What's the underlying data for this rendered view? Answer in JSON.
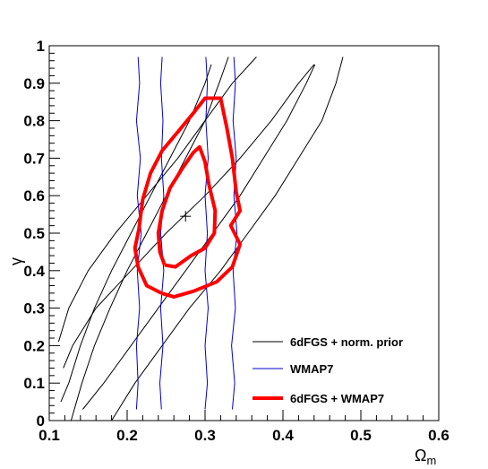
{
  "chart_data": {
    "type": "line",
    "xlabel": "Ω",
    "xlabel_sub": "m",
    "ylabel": "γ",
    "xlim": [
      0.1,
      0.6
    ],
    "ylim": [
      0,
      1
    ],
    "x_ticks": [
      "0.1",
      "0.2",
      "0.3",
      "0.4",
      "0.5",
      "0.6"
    ],
    "y_ticks": [
      "0",
      "0.1",
      "0.2",
      "0.3",
      "0.4",
      "0.5",
      "0.6",
      "0.7",
      "0.8",
      "0.9",
      "1"
    ],
    "grid": false,
    "legend_position": "bottom-right",
    "best_fit": {
      "x": 0.275,
      "y": 0.545,
      "marker": "+"
    },
    "series": [
      {
        "name": "6dFGS + norm. prior",
        "color": "#000000",
        "contours": [
          [
            [
              0.128,
              0.0
            ],
            [
              0.142,
              0.1
            ],
            [
              0.158,
              0.2
            ],
            [
              0.178,
              0.3
            ],
            [
              0.2,
              0.4
            ],
            [
              0.225,
              0.5
            ],
            [
              0.25,
              0.6
            ],
            [
              0.275,
              0.7
            ],
            [
              0.3,
              0.8
            ],
            [
              0.318,
              0.9
            ],
            [
              0.33,
              0.97
            ]
          ],
          [
            [
              0.115,
              0.05
            ],
            [
              0.125,
              0.1
            ],
            [
              0.14,
              0.2
            ],
            [
              0.158,
              0.3
            ],
            [
              0.18,
              0.4
            ],
            [
              0.205,
              0.5
            ],
            [
              0.23,
              0.6
            ],
            [
              0.255,
              0.7
            ],
            [
              0.28,
              0.8
            ],
            [
              0.3,
              0.9
            ],
            [
              0.308,
              0.95
            ]
          ],
          [
            [
              0.143,
              0.03
            ],
            [
              0.17,
              0.1
            ],
            [
              0.205,
              0.2
            ],
            [
              0.24,
              0.3
            ],
            [
              0.275,
              0.4
            ],
            [
              0.31,
              0.5
            ],
            [
              0.345,
              0.6
            ],
            [
              0.375,
              0.7
            ],
            [
              0.405,
              0.8
            ],
            [
              0.43,
              0.9
            ],
            [
              0.441,
              0.95
            ]
          ],
          [
            [
              0.118,
              0.14
            ],
            [
              0.13,
              0.2
            ],
            [
              0.16,
              0.3
            ],
            [
              0.205,
              0.4
            ],
            [
              0.25,
              0.5
            ],
            [
              0.3,
              0.6
            ],
            [
              0.345,
              0.7
            ],
            [
              0.385,
              0.8
            ],
            [
              0.42,
              0.9
            ],
            [
              0.44,
              0.95
            ]
          ],
          [
            [
              0.112,
              0.21
            ],
            [
              0.125,
              0.3
            ],
            [
              0.15,
              0.4
            ],
            [
              0.185,
              0.5
            ],
            [
              0.225,
              0.6
            ],
            [
              0.265,
              0.7
            ],
            [
              0.3,
              0.8
            ],
            [
              0.335,
              0.9
            ],
            [
              0.366,
              0.97
            ]
          ],
          [
            [
              0.18,
              0.0
            ],
            [
              0.21,
              0.1
            ],
            [
              0.245,
              0.2
            ],
            [
              0.28,
              0.3
            ],
            [
              0.32,
              0.4
            ],
            [
              0.355,
              0.5
            ],
            [
              0.39,
              0.6
            ],
            [
              0.42,
              0.7
            ],
            [
              0.45,
              0.8
            ],
            [
              0.468,
              0.9
            ],
            [
              0.477,
              0.97
            ]
          ]
        ]
      },
      {
        "name": "WMAP7",
        "color": "#0000cc",
        "contours": [
          [
            [
              0.212,
              0.03
            ],
            [
              0.214,
              0.1
            ],
            [
              0.212,
              0.2
            ],
            [
              0.216,
              0.3
            ],
            [
              0.213,
              0.4
            ],
            [
              0.218,
              0.5
            ],
            [
              0.213,
              0.6
            ],
            [
              0.217,
              0.7
            ],
            [
              0.212,
              0.8
            ],
            [
              0.216,
              0.9
            ],
            [
              0.214,
              0.97
            ]
          ],
          [
            [
              0.244,
              0.03
            ],
            [
              0.242,
              0.1
            ],
            [
              0.246,
              0.2
            ],
            [
              0.243,
              0.3
            ],
            [
              0.247,
              0.4
            ],
            [
              0.243,
              0.5
            ],
            [
              0.247,
              0.6
            ],
            [
              0.244,
              0.7
            ],
            [
              0.246,
              0.8
            ],
            [
              0.243,
              0.9
            ],
            [
              0.245,
              0.97
            ]
          ],
          [
            [
              0.3,
              0.03
            ],
            [
              0.303,
              0.1
            ],
            [
              0.3,
              0.2
            ],
            [
              0.304,
              0.3
            ],
            [
              0.3,
              0.4
            ],
            [
              0.303,
              0.5
            ],
            [
              0.3,
              0.6
            ],
            [
              0.304,
              0.7
            ],
            [
              0.301,
              0.8
            ],
            [
              0.303,
              0.9
            ],
            [
              0.301,
              0.97
            ]
          ],
          [
            [
              0.335,
              0.03
            ],
            [
              0.338,
              0.1
            ],
            [
              0.334,
              0.2
            ],
            [
              0.339,
              0.3
            ],
            [
              0.336,
              0.4
            ],
            [
              0.341,
              0.5
            ],
            [
              0.337,
              0.6
            ],
            [
              0.34,
              0.7
            ],
            [
              0.336,
              0.8
            ],
            [
              0.339,
              0.9
            ],
            [
              0.337,
              0.97
            ]
          ]
        ]
      },
      {
        "name": "6dFGS + WMAP7",
        "color": "#ff0000",
        "contours": [
          [
            [
              0.244,
              0.34
            ],
            [
              0.26,
              0.33
            ],
            [
              0.285,
              0.345
            ],
            [
              0.315,
              0.37
            ],
            [
              0.335,
              0.41
            ],
            [
              0.345,
              0.47
            ],
            [
              0.333,
              0.52
            ],
            [
              0.345,
              0.56
            ],
            [
              0.34,
              0.61
            ],
            [
              0.335,
              0.7
            ],
            [
              0.328,
              0.78
            ],
            [
              0.32,
              0.86
            ],
            [
              0.3,
              0.86
            ],
            [
              0.285,
              0.82
            ],
            [
              0.265,
              0.77
            ],
            [
              0.245,
              0.72
            ],
            [
              0.23,
              0.66
            ],
            [
              0.22,
              0.59
            ],
            [
              0.215,
              0.51
            ],
            [
              0.21,
              0.46
            ],
            [
              0.214,
              0.41
            ],
            [
              0.225,
              0.36
            ],
            [
              0.244,
              0.34
            ]
          ],
          [
            [
              0.248,
              0.415
            ],
            [
              0.262,
              0.41
            ],
            [
              0.282,
              0.44
            ],
            [
              0.3,
              0.46
            ],
            [
              0.312,
              0.5
            ],
            [
              0.313,
              0.56
            ],
            [
              0.305,
              0.63
            ],
            [
              0.3,
              0.69
            ],
            [
              0.293,
              0.73
            ],
            [
              0.285,
              0.715
            ],
            [
              0.27,
              0.67
            ],
            [
              0.255,
              0.62
            ],
            [
              0.245,
              0.56
            ],
            [
              0.24,
              0.5
            ],
            [
              0.242,
              0.45
            ],
            [
              0.248,
              0.415
            ]
          ]
        ]
      }
    ]
  }
}
